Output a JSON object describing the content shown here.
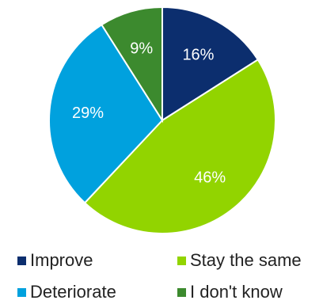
{
  "chart_data": {
    "type": "pie",
    "title": "",
    "categories": [
      "Improve",
      "Stay the same",
      "Deteriorate",
      "I don't know"
    ],
    "values": [
      16,
      46,
      29,
      9
    ],
    "labels": [
      "16%",
      "46%",
      "29%",
      "9%"
    ],
    "colors": [
      "#0c2e6e",
      "#92d400",
      "#00a1de",
      "#3c8a2e"
    ],
    "legend_position": "bottom",
    "start_angle_deg": 0,
    "direction": "clockwise"
  },
  "legend": {
    "items": [
      {
        "label": "Improve",
        "color": "#0c2e6e"
      },
      {
        "label": "Stay the same",
        "color": "#92d400"
      },
      {
        "label": "Deteriorate",
        "color": "#00a1de"
      },
      {
        "label": "I don't know",
        "color": "#3c8a2e"
      }
    ]
  }
}
